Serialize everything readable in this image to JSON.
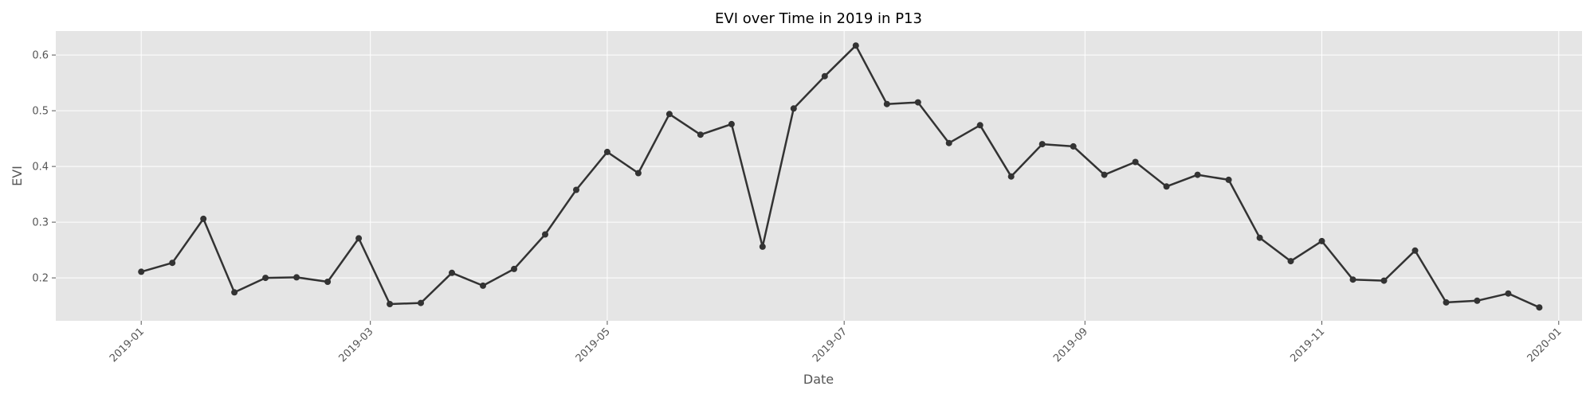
{
  "chart_data": {
    "type": "line",
    "title": "EVI over Time in 2019 in P13",
    "xlabel": "Date",
    "ylabel": "EVI",
    "xlim": [
      "2018-12-10",
      "2020-01-07"
    ],
    "ylim": [
      0.123,
      0.643
    ],
    "x_ticks": [
      "2019-01",
      "2019-03",
      "2019-05",
      "2019-07",
      "2019-09",
      "2019-11",
      "2020-01"
    ],
    "y_ticks": [
      "0.2",
      "0.3",
      "0.4",
      "0.5",
      "0.6"
    ],
    "grid": true,
    "colors": {
      "plot_bg": "#e5e5e5",
      "grid": "#ffffff",
      "line": "#333333"
    },
    "series": [
      {
        "x": [
          "2019-01-01",
          "2019-01-09",
          "2019-01-17",
          "2019-01-25",
          "2019-02-02",
          "2019-02-10",
          "2019-02-18",
          "2019-02-26",
          "2019-03-06",
          "2019-03-14",
          "2019-03-22",
          "2019-03-30",
          "2019-04-07",
          "2019-04-15",
          "2019-04-23",
          "2019-05-01",
          "2019-05-09",
          "2019-05-17",
          "2019-05-25",
          "2019-06-02",
          "2019-06-10",
          "2019-06-18",
          "2019-06-26",
          "2019-07-04",
          "2019-07-12",
          "2019-07-20",
          "2019-07-28",
          "2019-08-05",
          "2019-08-13",
          "2019-08-21",
          "2019-08-29",
          "2019-09-06",
          "2019-09-14",
          "2019-09-22",
          "2019-09-30",
          "2019-10-08",
          "2019-10-16",
          "2019-10-24",
          "2019-11-01",
          "2019-11-09",
          "2019-11-17",
          "2019-11-25",
          "2019-12-03",
          "2019-12-11",
          "2019-12-19",
          "2019-12-27"
        ],
        "values": [
          0.211,
          0.227,
          0.306,
          0.174,
          0.2,
          0.201,
          0.193,
          0.271,
          0.153,
          0.155,
          0.209,
          0.186,
          0.216,
          0.278,
          0.358,
          0.426,
          0.388,
          0.494,
          0.457,
          0.476,
          0.256,
          0.504,
          0.562,
          0.617,
          0.512,
          0.515,
          0.442,
          0.474,
          0.382,
          0.44,
          0.436,
          0.385,
          0.408,
          0.364,
          0.385,
          0.376,
          0.272,
          0.23,
          0.266,
          0.197,
          0.195,
          0.249,
          0.156,
          0.159,
          0.172,
          0.147
        ]
      }
    ]
  }
}
